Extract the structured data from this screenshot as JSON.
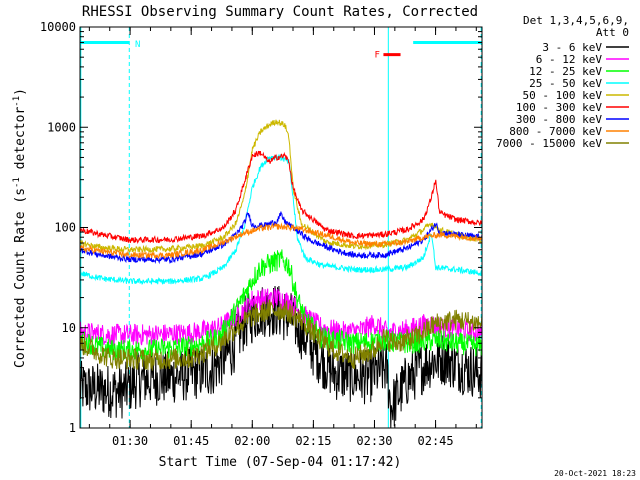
{
  "chart_data": {
    "type": "line",
    "title": "RHESSI Observing Summary Count Rates, Corrected",
    "xlabel": "Start Time (07-Sep-04 01:17:42)",
    "ylabel": "Corrected Count Rate (s^-1 detector^-1)",
    "ylabel_main": "Corrected Count Rate (s",
    "ylabel_mid": " detector",
    "ylabel_end": ")",
    "ylabel_sup": "-1",
    "yscale": "log",
    "ylim": [
      1,
      10000
    ],
    "xlim_minutes": [
      77.7,
      176.4
    ],
    "x_ticks": [
      {
        "m": 90,
        "label": "01:30"
      },
      {
        "m": 105,
        "label": "01:45"
      },
      {
        "m": 120,
        "label": "02:00"
      },
      {
        "m": 135,
        "label": "02:15"
      },
      {
        "m": 150,
        "label": "02:30"
      },
      {
        "m": 165,
        "label": "02:45"
      }
    ],
    "y_ticks": [
      {
        "v": 1,
        "label": "1"
      },
      {
        "v": 10,
        "label": "10"
      },
      {
        "v": 100,
        "label": "100"
      },
      {
        "v": 1000,
        "label": "1000"
      },
      {
        "v": 10000,
        "label": "10000"
      }
    ],
    "legend_header": [
      "Det 1,3,4,5,6,9,",
      "Att 0"
    ],
    "legend_position": "top-right, outside plot",
    "series": [
      {
        "name": "3 - 6 keV",
        "color": "#000000",
        "points": [
          [
            77.7,
            2.5
          ],
          [
            88,
            2.3
          ],
          [
            92,
            3.0
          ],
          [
            100,
            3.2
          ],
          [
            110,
            3.8
          ],
          [
            115,
            6
          ],
          [
            118,
            11
          ],
          [
            122,
            15
          ],
          [
            126,
            15
          ],
          [
            130,
            12
          ],
          [
            135,
            6
          ],
          [
            140,
            3.5
          ],
          [
            148,
            3.2
          ],
          [
            153,
            4.0
          ],
          [
            154,
            1.6
          ],
          [
            158,
            3.0
          ],
          [
            163,
            4.5
          ],
          [
            167,
            5.0
          ],
          [
            172,
            4.0
          ],
          [
            176.4,
            3.5
          ]
        ]
      },
      {
        "name": "6 - 12 keV",
        "color": "#ff00ff",
        "points": [
          [
            77.7,
            9
          ],
          [
            85,
            8.5
          ],
          [
            95,
            8.5
          ],
          [
            105,
            8.8
          ],
          [
            112,
            10
          ],
          [
            118,
            15
          ],
          [
            120,
            19
          ],
          [
            126,
            20
          ],
          [
            129,
            18
          ],
          [
            133,
            13
          ],
          [
            137,
            10
          ],
          [
            142,
            9
          ],
          [
            147,
            9.5
          ],
          [
            150,
            11
          ],
          [
            153,
            9
          ],
          [
            158,
            9.5
          ],
          [
            163,
            11
          ],
          [
            167,
            10
          ],
          [
            172,
            9.5
          ],
          [
            176.4,
            9
          ]
        ]
      },
      {
        "name": "12 - 25 keV",
        "color": "#00ff00",
        "points": [
          [
            77.7,
            7.5
          ],
          [
            85,
            6
          ],
          [
            95,
            6
          ],
          [
            105,
            6.5
          ],
          [
            112,
            8
          ],
          [
            116,
            15
          ],
          [
            120,
            30
          ],
          [
            122,
            40
          ],
          [
            127,
            48
          ],
          [
            129,
            42
          ],
          [
            131,
            20
          ],
          [
            133,
            12
          ],
          [
            137,
            8
          ],
          [
            145,
            7
          ],
          [
            152,
            7.5
          ],
          [
            158,
            7
          ],
          [
            165,
            7.5
          ],
          [
            170,
            7
          ],
          [
            176.4,
            6.5
          ]
        ]
      },
      {
        "name": "25 - 50 keV",
        "color": "#00ffff",
        "points": [
          [
            77.7,
            35
          ],
          [
            83,
            31
          ],
          [
            90,
            29
          ],
          [
            100,
            29
          ],
          [
            108,
            31
          ],
          [
            113,
            40
          ],
          [
            116,
            60
          ],
          [
            118,
            100
          ],
          [
            120,
            250
          ],
          [
            122,
            400
          ],
          [
            124,
            500
          ],
          [
            127,
            500
          ],
          [
            129,
            450
          ],
          [
            130,
            200
          ],
          [
            131,
            80
          ],
          [
            133,
            50
          ],
          [
            137,
            42
          ],
          [
            145,
            38
          ],
          [
            152,
            38
          ],
          [
            158,
            40
          ],
          [
            162,
            50
          ],
          [
            164,
            90
          ],
          [
            165,
            40
          ],
          [
            170,
            38
          ],
          [
            176.4,
            35
          ]
        ]
      },
      {
        "name": "50 - 100 keV",
        "color": "#ccb800",
        "points": [
          [
            77.7,
            70
          ],
          [
            83,
            63
          ],
          [
            90,
            60
          ],
          [
            100,
            61
          ],
          [
            108,
            66
          ],
          [
            113,
            80
          ],
          [
            116,
            110
          ],
          [
            118,
            200
          ],
          [
            120,
            600
          ],
          [
            122,
            900
          ],
          [
            124,
            1050
          ],
          [
            126,
            1150
          ],
          [
            128,
            1050
          ],
          [
            129,
            800
          ],
          [
            130,
            250
          ],
          [
            132,
            110
          ],
          [
            138,
            72
          ],
          [
            145,
            65
          ],
          [
            152,
            67
          ],
          [
            158,
            75
          ],
          [
            162,
            95
          ],
          [
            164,
            110
          ],
          [
            166,
            95
          ],
          [
            170,
            85
          ],
          [
            176.4,
            75
          ]
        ]
      },
      {
        "name": "100 - 300 keV",
        "color": "#ff0000",
        "points": [
          [
            77.7,
            95
          ],
          [
            83,
            85
          ],
          [
            90,
            75
          ],
          [
            100,
            76
          ],
          [
            108,
            83
          ],
          [
            113,
            100
          ],
          [
            116,
            150
          ],
          [
            118,
            280
          ],
          [
            120,
            520
          ],
          [
            122,
            560
          ],
          [
            124,
            450
          ],
          [
            126,
            500
          ],
          [
            128,
            520
          ],
          [
            129,
            450
          ],
          [
            130,
            250
          ],
          [
            132,
            150
          ],
          [
            138,
            95
          ],
          [
            145,
            82
          ],
          [
            152,
            85
          ],
          [
            158,
            95
          ],
          [
            162,
            120
          ],
          [
            164,
            200
          ],
          [
            165,
            300
          ],
          [
            166,
            140
          ],
          [
            170,
            120
          ],
          [
            176.4,
            110
          ]
        ]
      },
      {
        "name": "300 - 800 keV",
        "color": "#0000ff",
        "points": [
          [
            77.7,
            60
          ],
          [
            83,
            53
          ],
          [
            90,
            48
          ],
          [
            100,
            48
          ],
          [
            108,
            55
          ],
          [
            113,
            68
          ],
          [
            116,
            85
          ],
          [
            118,
            110
          ],
          [
            119,
            140
          ],
          [
            120,
            105
          ],
          [
            123,
            105
          ],
          [
            126,
            115
          ],
          [
            127,
            135
          ],
          [
            128,
            115
          ],
          [
            130,
            100
          ],
          [
            134,
            75
          ],
          [
            140,
            60
          ],
          [
            145,
            53
          ],
          [
            152,
            53
          ],
          [
            158,
            62
          ],
          [
            162,
            75
          ],
          [
            164,
            95
          ],
          [
            165,
            110
          ],
          [
            166,
            90
          ],
          [
            170,
            85
          ],
          [
            176.4,
            80
          ]
        ]
      },
      {
        "name": "800 - 7000 keV",
        "color": "#ff8000",
        "points": [
          [
            77.7,
            62
          ],
          [
            83,
            58
          ],
          [
            90,
            53
          ],
          [
            100,
            53
          ],
          [
            108,
            60
          ],
          [
            113,
            72
          ],
          [
            118,
            88
          ],
          [
            122,
            98
          ],
          [
            126,
            102
          ],
          [
            130,
            100
          ],
          [
            134,
            92
          ],
          [
            140,
            80
          ],
          [
            145,
            70
          ],
          [
            152,
            68
          ],
          [
            158,
            72
          ],
          [
            162,
            80
          ],
          [
            166,
            85
          ],
          [
            170,
            82
          ],
          [
            176.4,
            78
          ]
        ]
      },
      {
        "name": "7000 - 15000 keV",
        "color": "#808000",
        "points": [
          [
            77.7,
            7
          ],
          [
            85,
            5
          ],
          [
            95,
            4.8
          ],
          [
            105,
            5
          ],
          [
            112,
            7
          ],
          [
            116,
            10
          ],
          [
            120,
            13
          ],
          [
            124,
            15
          ],
          [
            128,
            15
          ],
          [
            132,
            12
          ],
          [
            136,
            8
          ],
          [
            140,
            6
          ],
          [
            145,
            5
          ],
          [
            150,
            6
          ],
          [
            152,
            8
          ],
          [
            155,
            7
          ],
          [
            160,
            8
          ],
          [
            165,
            11
          ],
          [
            170,
            12
          ],
          [
            176.4,
            11
          ]
        ]
      }
    ],
    "annotations": {
      "night_label": "N",
      "flare_label": "F",
      "timestamp": "20-Oct-2021 18:23"
    }
  }
}
